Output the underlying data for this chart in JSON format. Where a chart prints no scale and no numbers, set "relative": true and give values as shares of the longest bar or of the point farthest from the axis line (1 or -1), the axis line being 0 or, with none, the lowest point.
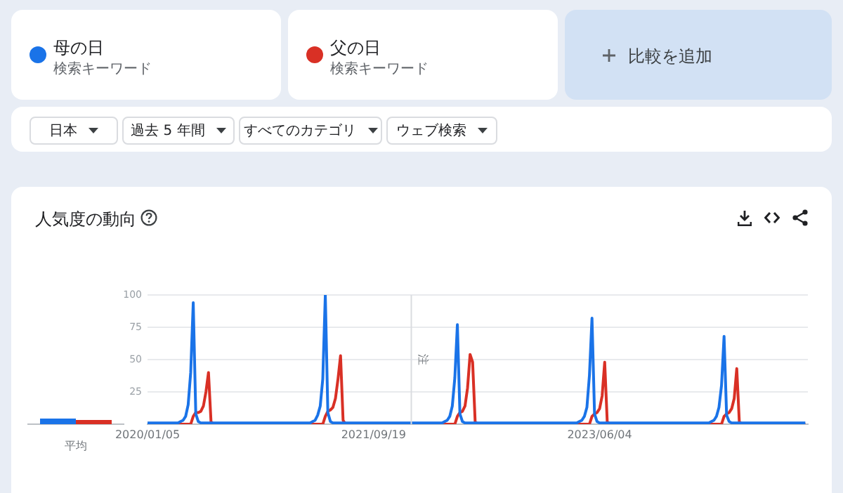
{
  "chart_data": [
    {
      "type": "line",
      "title": "人気度の動向",
      "legend": "top",
      "grid": "y",
      "marker": "none",
      "line_style": "solid",
      "xlim": [
        "2020-01-05",
        "2024-12-29"
      ],
      "xticks": [
        {
          "value": "2020-01-05",
          "label": "2020/01/05"
        },
        {
          "value": "2021-09-19",
          "label": "2021/09/19"
        },
        {
          "value": "2023-06-04",
          "label": "2023/06/04"
        }
      ],
      "ylim": [
        0,
        100
      ],
      "yticks": [
        25,
        50,
        75,
        100
      ],
      "ref_lines": [
        {
          "axis": "x",
          "value": "2022-01-01",
          "label": "注",
          "color": "#dadce0"
        }
      ],
      "annotations": [
        "検索キーワード",
        "検索キーワード",
        "比較を追加",
        "日本",
        "過去 5 年間",
        "すべてのカテゴリ",
        "ウェブ検索"
      ],
      "series": [
        {
          "name": "母の日",
          "color": "#1a73e8",
          "x": [
            "2020-01-05",
            "2020-03-29",
            "2020-04-05",
            "2020-04-12",
            "2020-04-19",
            "2020-04-26",
            "2020-05-03",
            "2020-05-10",
            "2020-05-17",
            "2020-05-24",
            "2020-05-31",
            "2021-03-28",
            "2021-04-04",
            "2021-04-11",
            "2021-04-18",
            "2021-04-25",
            "2021-05-02",
            "2021-05-09",
            "2021-05-16",
            "2021-05-23",
            "2021-05-30",
            "2022-03-27",
            "2022-04-03",
            "2022-04-10",
            "2022-04-17",
            "2022-04-24",
            "2022-05-01",
            "2022-05-08",
            "2022-05-15",
            "2022-05-22",
            "2022-05-29",
            "2023-04-02",
            "2023-04-09",
            "2023-04-16",
            "2023-04-23",
            "2023-04-30",
            "2023-05-07",
            "2023-05-14",
            "2023-05-21",
            "2023-05-28",
            "2023-06-04",
            "2024-03-31",
            "2024-04-07",
            "2024-04-14",
            "2024-04-21",
            "2024-04-28",
            "2024-05-05",
            "2024-05-12",
            "2024-05-19",
            "2024-05-26",
            "2024-06-02",
            "2024-12-22"
          ],
          "values": [
            1,
            1,
            2,
            3,
            6,
            15,
            40,
            94,
            8,
            2,
            1,
            1,
            2,
            3,
            7,
            14,
            35,
            100,
            9,
            2,
            1,
            1,
            2,
            3,
            6,
            14,
            36,
            77,
            8,
            2,
            1,
            1,
            2,
            3,
            6,
            13,
            38,
            82,
            8,
            2,
            1,
            1,
            2,
            3,
            6,
            13,
            30,
            68,
            7,
            2,
            1,
            1
          ]
        },
        {
          "name": "父の日",
          "color": "#d93025",
          "x": [
            "2020-01-05",
            "2020-05-03",
            "2020-05-10",
            "2020-05-17",
            "2020-05-24",
            "2020-05-31",
            "2020-06-07",
            "2020-06-14",
            "2020-06-21",
            "2020-06-28",
            "2020-07-05",
            "2021-05-02",
            "2021-05-09",
            "2021-05-16",
            "2021-05-23",
            "2021-05-30",
            "2021-06-06",
            "2021-06-13",
            "2021-06-20",
            "2021-06-27",
            "2021-07-04",
            "2022-05-01",
            "2022-05-08",
            "2022-05-15",
            "2022-05-22",
            "2022-05-29",
            "2022-06-05",
            "2022-06-12",
            "2022-06-19",
            "2022-06-26",
            "2022-07-03",
            "2023-05-07",
            "2023-05-14",
            "2023-05-21",
            "2023-05-28",
            "2023-06-04",
            "2023-06-11",
            "2023-06-18",
            "2023-06-25",
            "2023-07-02",
            "2024-05-05",
            "2024-05-12",
            "2024-05-19",
            "2024-05-26",
            "2024-06-02",
            "2024-06-09",
            "2024-06-16",
            "2024-06-23",
            "2024-06-30",
            "2024-12-22"
          ],
          "values": [
            0,
            0,
            6,
            9,
            9,
            10,
            14,
            25,
            40,
            2,
            0,
            0,
            6,
            10,
            11,
            13,
            20,
            35,
            53,
            3,
            0,
            0,
            6,
            9,
            10,
            14,
            28,
            54,
            48,
            2,
            0,
            0,
            6,
            8,
            9,
            12,
            22,
            48,
            2,
            0,
            0,
            6,
            8,
            9,
            12,
            20,
            43,
            2,
            0,
            0
          ]
        }
      ]
    },
    {
      "type": "bar",
      "relative": true,
      "categories": [
        "平均"
      ],
      "series": [
        {
          "color": "#1a73e8",
          "values": [
            1
          ]
        },
        {
          "color": "#d93025",
          "values": [
            0.75
          ]
        }
      ]
    }
  ]
}
